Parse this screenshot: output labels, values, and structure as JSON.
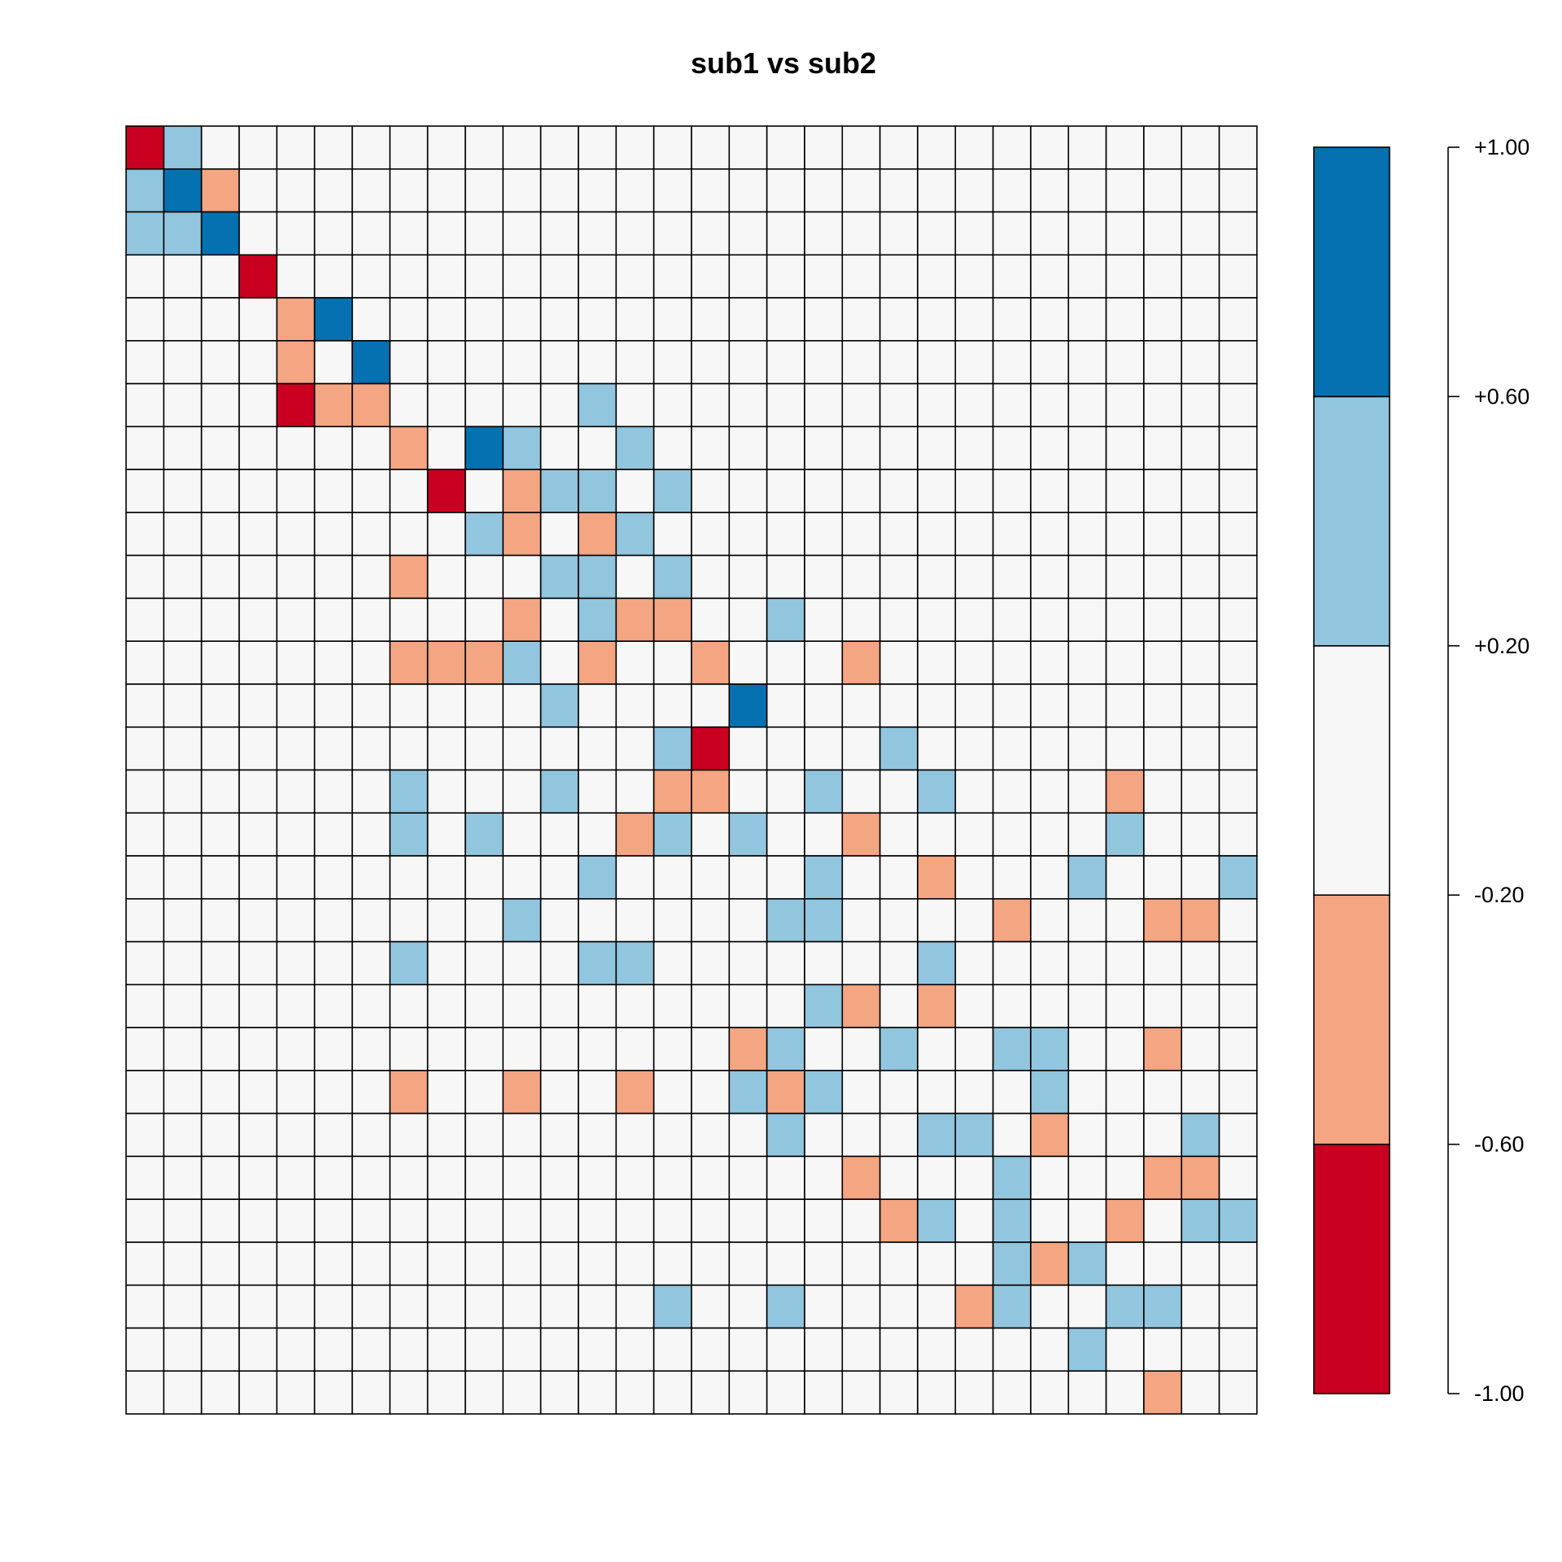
{
  "chart_data": {
    "type": "heatmap",
    "title": "sub1 vs sub2",
    "xlabel": "",
    "ylabel": "",
    "value_range": [
      -1.0,
      1.0
    ],
    "grid": true,
    "legend": "right",
    "colorbar": {
      "bins": [
        {
          "min": -1.0,
          "max": -0.6,
          "color": "#ca0020"
        },
        {
          "min": -0.6,
          "max": -0.2,
          "color": "#f4a582"
        },
        {
          "min": -0.2,
          "max": 0.2,
          "color": "#f7f7f7"
        },
        {
          "min": 0.2,
          "max": 0.6,
          "color": "#92c5de"
        },
        {
          "min": 0.6,
          "max": 1.0,
          "color": "#0571b0"
        }
      ],
      "tick_values": [
        1.0,
        0.6,
        0.2,
        -0.2,
        -0.6,
        -1.0
      ],
      "tick_labels": [
        "+1.00",
        "+0.60",
        "+0.20",
        "-0.20",
        "-0.60",
        "-1.00"
      ]
    },
    "n_rows": 30,
    "n_cols": 30,
    "value_levels": {
      "-2": -0.8,
      "-1": -0.4,
      "0": 0.0,
      "1": 0.4,
      "2": 0.8
    },
    "matrix": [
      [
        -2,
        1,
        0,
        0,
        0,
        0,
        0,
        0,
        0,
        0,
        0,
        0,
        0,
        0,
        0,
        0,
        0,
        0,
        0,
        0,
        0,
        0,
        0,
        0,
        0,
        0,
        0,
        0,
        0,
        0
      ],
      [
        1,
        2,
        -1,
        0,
        0,
        0,
        0,
        0,
        0,
        0,
        0,
        0,
        0,
        0,
        0,
        0,
        0,
        0,
        0,
        0,
        0,
        0,
        0,
        0,
        0,
        0,
        0,
        0,
        0,
        0
      ],
      [
        1,
        1,
        2,
        0,
        0,
        0,
        0,
        0,
        0,
        0,
        0,
        0,
        0,
        0,
        0,
        0,
        0,
        0,
        0,
        0,
        0,
        0,
        0,
        0,
        0,
        0,
        0,
        0,
        0,
        0
      ],
      [
        0,
        0,
        0,
        -2,
        0,
        0,
        0,
        0,
        0,
        0,
        0,
        0,
        0,
        0,
        0,
        0,
        0,
        0,
        0,
        0,
        0,
        0,
        0,
        0,
        0,
        0,
        0,
        0,
        0,
        0
      ],
      [
        0,
        0,
        0,
        0,
        -1,
        2,
        0,
        0,
        0,
        0,
        0,
        0,
        0,
        0,
        0,
        0,
        0,
        0,
        0,
        0,
        0,
        0,
        0,
        0,
        0,
        0,
        0,
        0,
        0,
        0
      ],
      [
        0,
        0,
        0,
        0,
        -1,
        0,
        2,
        0,
        0,
        0,
        0,
        0,
        0,
        0,
        0,
        0,
        0,
        0,
        0,
        0,
        0,
        0,
        0,
        0,
        0,
        0,
        0,
        0,
        0,
        0
      ],
      [
        0,
        0,
        0,
        0,
        -2,
        -1,
        -1,
        0,
        0,
        0,
        0,
        0,
        1,
        0,
        0,
        0,
        0,
        0,
        0,
        0,
        0,
        0,
        0,
        0,
        0,
        0,
        0,
        0,
        0,
        0
      ],
      [
        0,
        0,
        0,
        0,
        0,
        0,
        0,
        -1,
        0,
        2,
        1,
        0,
        0,
        1,
        0,
        0,
        0,
        0,
        0,
        0,
        0,
        0,
        0,
        0,
        0,
        0,
        0,
        0,
        0,
        0
      ],
      [
        0,
        0,
        0,
        0,
        0,
        0,
        0,
        0,
        -2,
        0,
        -1,
        1,
        1,
        0,
        1,
        0,
        0,
        0,
        0,
        0,
        0,
        0,
        0,
        0,
        0,
        0,
        0,
        0,
        0,
        0
      ],
      [
        0,
        0,
        0,
        0,
        0,
        0,
        0,
        0,
        0,
        1,
        -1,
        0,
        -1,
        1,
        0,
        0,
        0,
        0,
        0,
        0,
        0,
        0,
        0,
        0,
        0,
        0,
        0,
        0,
        0,
        0
      ],
      [
        0,
        0,
        0,
        0,
        0,
        0,
        0,
        -1,
        0,
        0,
        0,
        1,
        1,
        0,
        1,
        0,
        0,
        0,
        0,
        0,
        0,
        0,
        0,
        0,
        0,
        0,
        0,
        0,
        0,
        0
      ],
      [
        0,
        0,
        0,
        0,
        0,
        0,
        0,
        0,
        0,
        0,
        -1,
        0,
        1,
        -1,
        -1,
        0,
        0,
        1,
        0,
        0,
        0,
        0,
        0,
        0,
        0,
        0,
        0,
        0,
        0,
        0
      ],
      [
        0,
        0,
        0,
        0,
        0,
        0,
        0,
        -1,
        -1,
        -1,
        1,
        0,
        -1,
        0,
        0,
        -1,
        0,
        0,
        0,
        -1,
        0,
        0,
        0,
        0,
        0,
        0,
        0,
        0,
        0,
        0
      ],
      [
        0,
        0,
        0,
        0,
        0,
        0,
        0,
        0,
        0,
        0,
        0,
        1,
        0,
        0,
        0,
        0,
        2,
        0,
        0,
        0,
        0,
        0,
        0,
        0,
        0,
        0,
        0,
        0,
        0,
        0
      ],
      [
        0,
        0,
        0,
        0,
        0,
        0,
        0,
        0,
        0,
        0,
        0,
        0,
        0,
        0,
        1,
        -2,
        0,
        0,
        0,
        0,
        1,
        0,
        0,
        0,
        0,
        0,
        0,
        0,
        0,
        0
      ],
      [
        0,
        0,
        0,
        0,
        0,
        0,
        0,
        1,
        0,
        0,
        0,
        1,
        0,
        0,
        -1,
        -1,
        0,
        0,
        1,
        0,
        0,
        1,
        0,
        0,
        0,
        0,
        -1,
        0,
        0,
        0
      ],
      [
        0,
        0,
        0,
        0,
        0,
        0,
        0,
        1,
        0,
        1,
        0,
        0,
        0,
        -1,
        1,
        0,
        1,
        0,
        0,
        -1,
        0,
        0,
        0,
        0,
        0,
        0,
        1,
        0,
        0,
        0
      ],
      [
        0,
        0,
        0,
        0,
        0,
        0,
        0,
        0,
        0,
        0,
        0,
        0,
        1,
        0,
        0,
        0,
        0,
        0,
        1,
        0,
        0,
        -1,
        0,
        0,
        0,
        1,
        0,
        0,
        0,
        1
      ],
      [
        0,
        0,
        0,
        0,
        0,
        0,
        0,
        0,
        0,
        0,
        1,
        0,
        0,
        0,
        0,
        0,
        0,
        1,
        1,
        0,
        0,
        0,
        0,
        -1,
        0,
        0,
        0,
        -1,
        -1,
        0
      ],
      [
        0,
        0,
        0,
        0,
        0,
        0,
        0,
        1,
        0,
        0,
        0,
        0,
        1,
        1,
        0,
        0,
        0,
        0,
        0,
        0,
        0,
        1,
        0,
        0,
        0,
        0,
        0,
        0,
        0,
        0
      ],
      [
        0,
        0,
        0,
        0,
        0,
        0,
        0,
        0,
        0,
        0,
        0,
        0,
        0,
        0,
        0,
        0,
        0,
        0,
        1,
        -1,
        0,
        -1,
        0,
        0,
        0,
        0,
        0,
        0,
        0,
        0
      ],
      [
        0,
        0,
        0,
        0,
        0,
        0,
        0,
        0,
        0,
        0,
        0,
        0,
        0,
        0,
        0,
        0,
        -1,
        1,
        0,
        0,
        1,
        0,
        0,
        1,
        1,
        0,
        0,
        -1,
        0,
        0
      ],
      [
        0,
        0,
        0,
        0,
        0,
        0,
        0,
        -1,
        0,
        0,
        -1,
        0,
        0,
        -1,
        0,
        0,
        1,
        -1,
        1,
        0,
        0,
        0,
        0,
        0,
        1,
        0,
        0,
        0,
        0,
        0
      ],
      [
        0,
        0,
        0,
        0,
        0,
        0,
        0,
        0,
        0,
        0,
        0,
        0,
        0,
        0,
        0,
        0,
        0,
        1,
        0,
        0,
        0,
        1,
        1,
        0,
        -1,
        0,
        0,
        0,
        1,
        0
      ],
      [
        0,
        0,
        0,
        0,
        0,
        0,
        0,
        0,
        0,
        0,
        0,
        0,
        0,
        0,
        0,
        0,
        0,
        0,
        0,
        -1,
        0,
        0,
        0,
        1,
        0,
        0,
        0,
        -1,
        -1,
        0
      ],
      [
        0,
        0,
        0,
        0,
        0,
        0,
        0,
        0,
        0,
        0,
        0,
        0,
        0,
        0,
        0,
        0,
        0,
        0,
        0,
        0,
        -1,
        1,
        0,
        1,
        0,
        0,
        -1,
        0,
        1,
        1
      ],
      [
        0,
        0,
        0,
        0,
        0,
        0,
        0,
        0,
        0,
        0,
        0,
        0,
        0,
        0,
        0,
        0,
        0,
        0,
        0,
        0,
        0,
        0,
        0,
        1,
        -1,
        1,
        0,
        0,
        0,
        0
      ],
      [
        0,
        0,
        0,
        0,
        0,
        0,
        0,
        0,
        0,
        0,
        0,
        0,
        0,
        0,
        1,
        0,
        0,
        1,
        0,
        0,
        0,
        0,
        -1,
        1,
        0,
        0,
        1,
        1,
        0,
        0
      ],
      [
        0,
        0,
        0,
        0,
        0,
        0,
        0,
        0,
        0,
        0,
        0,
        0,
        0,
        0,
        0,
        0,
        0,
        0,
        0,
        0,
        0,
        0,
        0,
        0,
        0,
        1,
        0,
        0,
        0,
        0
      ],
      [
        0,
        0,
        0,
        0,
        0,
        0,
        0,
        0,
        0,
        0,
        0,
        0,
        0,
        0,
        0,
        0,
        0,
        0,
        0,
        0,
        0,
        0,
        0,
        0,
        0,
        0,
        0,
        -1,
        0,
        0
      ]
    ]
  }
}
